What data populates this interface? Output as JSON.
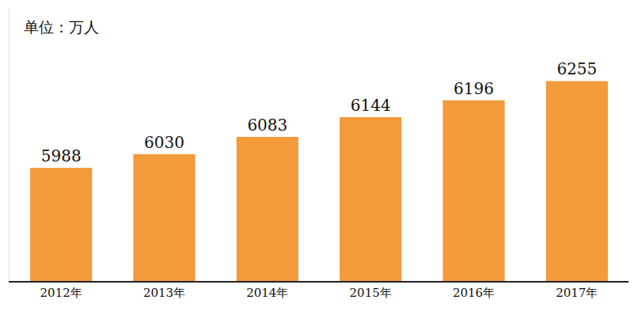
{
  "chart_data": {
    "type": "bar",
    "annotations": [
      "单位：万人"
    ],
    "categories": [
      "2012年",
      "2013年",
      "2014年",
      "2015年",
      "2016年",
      "2017年"
    ],
    "values": [
      5988,
      6030,
      6083,
      6144,
      6196,
      6255
    ],
    "color": "#f39a3b",
    "ylim": [
      5640,
      6480
    ],
    "yticks": [],
    "tick_labels": "x",
    "data_labels": true,
    "grid": false
  }
}
